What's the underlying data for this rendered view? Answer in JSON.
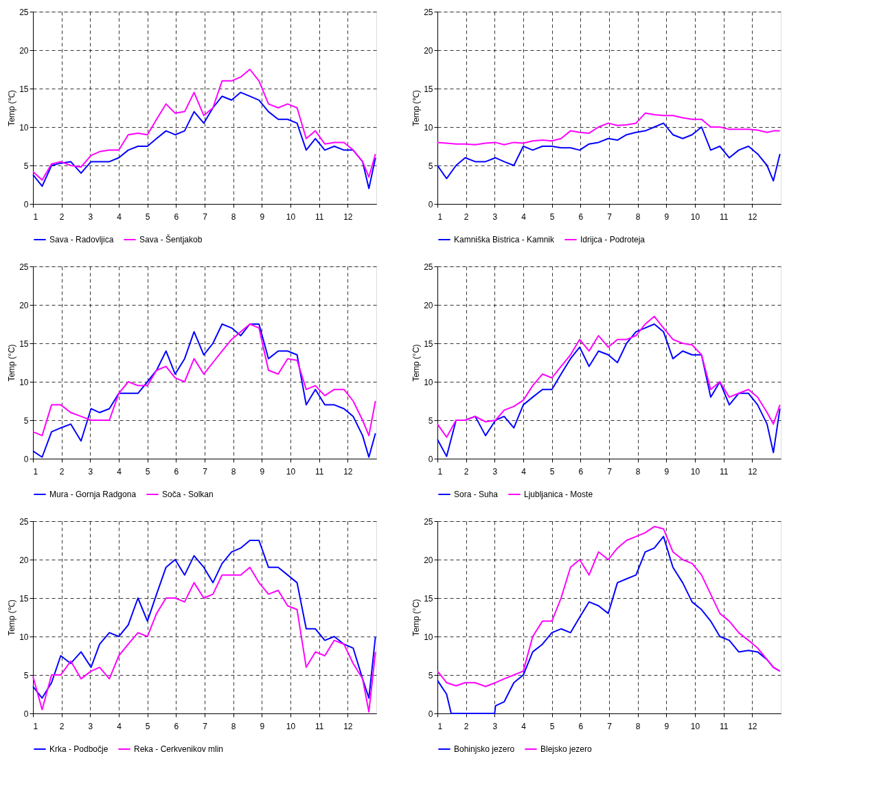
{
  "chart_data": [
    {
      "type": "line",
      "ylabel": "Temp (℃)",
      "x": [
        1.0,
        1.32,
        1.65,
        1.97,
        2.32,
        2.68,
        3.03,
        3.33,
        3.67,
        4.0,
        4.33,
        4.67,
        5.0,
        5.32,
        5.65,
        5.97,
        6.3,
        6.63,
        6.97,
        7.29,
        7.61,
        7.94,
        8.26,
        8.58,
        8.9,
        9.23,
        9.57,
        9.9,
        10.23,
        10.55,
        10.87,
        11.2,
        11.53,
        11.87,
        12.19,
        12.52,
        12.74,
        12.97
      ],
      "xlim": [
        1,
        13
      ],
      "xticks": [
        1,
        2,
        3,
        4,
        5,
        6,
        7,
        8,
        9,
        10,
        11,
        12
      ],
      "ylim": [
        0,
        25
      ],
      "yticks": [
        0,
        5,
        10,
        15,
        20,
        25
      ],
      "grid": true,
      "legend": "bottom",
      "series": [
        {
          "name": "Sava - Radovljica",
          "color": "#0000ff",
          "values": [
            3.8,
            2.3,
            5.0,
            5.3,
            5.5,
            4.0,
            5.5,
            5.5,
            5.5,
            6.0,
            7.0,
            7.5,
            7.5,
            8.5,
            9.5,
            9.0,
            9.5,
            12.0,
            10.5,
            12.5,
            14.0,
            13.5,
            14.5,
            14.0,
            13.5,
            12.0,
            11.0,
            11.0,
            10.5,
            7.0,
            8.5,
            7.0,
            7.5,
            7.0,
            7.0,
            5.5,
            2.0,
            6.0
          ]
        },
        {
          "name": "Sava - Šentjakob",
          "color": "#ff00ff",
          "values": [
            4.2,
            3.1,
            5.2,
            5.5,
            5.0,
            4.8,
            6.3,
            6.8,
            7.0,
            7.0,
            9.0,
            9.2,
            9.0,
            11.0,
            13.0,
            11.8,
            12.0,
            14.5,
            11.5,
            12.5,
            16.0,
            16.0,
            16.5,
            17.5,
            16.0,
            13.0,
            12.5,
            13.0,
            12.5,
            8.5,
            9.5,
            7.8,
            8.0,
            8.0,
            7.0,
            5.5,
            3.5,
            6.5
          ]
        }
      ]
    },
    {
      "type": "line",
      "ylabel": "Temp (℃)",
      "x": [
        1.0,
        1.32,
        1.65,
        1.97,
        2.32,
        2.68,
        3.03,
        3.33,
        3.67,
        4.0,
        4.33,
        4.67,
        5.0,
        5.32,
        5.65,
        5.97,
        6.3,
        6.63,
        6.97,
        7.29,
        7.61,
        7.94,
        8.26,
        8.58,
        8.9,
        9.23,
        9.57,
        9.9,
        10.23,
        10.55,
        10.87,
        11.2,
        11.53,
        11.87,
        12.19,
        12.52,
        12.74,
        12.97
      ],
      "xlim": [
        1,
        13
      ],
      "xticks": [
        1,
        2,
        3,
        4,
        5,
        6,
        7,
        8,
        9,
        10,
        11,
        12
      ],
      "ylim": [
        0,
        25
      ],
      "yticks": [
        0,
        5,
        10,
        15,
        20,
        25
      ],
      "grid": true,
      "legend": "bottom",
      "series": [
        {
          "name": "Kamniška Bistrica - Kamnik",
          "color": "#0000ff",
          "values": [
            5.0,
            3.3,
            5.0,
            6.0,
            5.5,
            5.5,
            6.0,
            5.5,
            5.0,
            7.5,
            7.0,
            7.5,
            7.5,
            7.3,
            7.3,
            7.0,
            7.8,
            8.0,
            8.5,
            8.3,
            9.0,
            9.3,
            9.5,
            10.0,
            10.5,
            9.0,
            8.5,
            9.0,
            10.0,
            7.0,
            7.5,
            6.0,
            7.0,
            7.5,
            6.5,
            5.0,
            3.0,
            6.5
          ]
        },
        {
          "name": "Idrijca - Podroteja",
          "color": "#ff00ff",
          "values": [
            8.0,
            7.9,
            7.8,
            7.8,
            7.7,
            7.9,
            8.0,
            7.7,
            8.0,
            7.9,
            8.2,
            8.3,
            8.2,
            8.5,
            9.5,
            9.3,
            9.2,
            10.0,
            10.5,
            10.2,
            10.3,
            10.5,
            11.8,
            11.6,
            11.5,
            11.5,
            11.2,
            11.0,
            11.0,
            10.0,
            10.0,
            9.7,
            9.7,
            9.7,
            9.6,
            9.3,
            9.5,
            9.5
          ]
        }
      ]
    },
    {
      "type": "line",
      "ylabel": "Temp (°C)",
      "x": [
        1.0,
        1.32,
        1.65,
        1.97,
        2.32,
        2.68,
        3.03,
        3.33,
        3.67,
        4.0,
        4.33,
        4.67,
        5.0,
        5.32,
        5.65,
        5.97,
        6.3,
        6.63,
        6.97,
        7.29,
        7.61,
        7.94,
        8.26,
        8.58,
        8.9,
        9.23,
        9.57,
        9.9,
        10.23,
        10.55,
        10.87,
        11.2,
        11.53,
        11.87,
        12.19,
        12.52,
        12.74,
        12.97
      ],
      "xlim": [
        1,
        13
      ],
      "xticks": [
        1,
        2,
        3,
        4,
        5,
        6,
        7,
        8,
        9,
        10,
        11,
        12
      ],
      "ylim": [
        0,
        25
      ],
      "yticks": [
        0,
        5,
        10,
        15,
        20,
        25
      ],
      "grid": true,
      "legend": "bottom",
      "series": [
        {
          "name": "Mura - Gornja Radgona",
          "color": "#0000ff",
          "values": [
            1.0,
            0.2,
            3.5,
            4.0,
            4.5,
            2.3,
            6.5,
            6.0,
            6.5,
            8.5,
            8.5,
            8.5,
            10.0,
            11.5,
            14.0,
            11.0,
            13.0,
            16.5,
            13.5,
            15.0,
            17.5,
            17.0,
            16.0,
            17.5,
            17.5,
            13.0,
            14.0,
            14.0,
            13.5,
            7.0,
            9.0,
            7.0,
            7.0,
            6.5,
            5.5,
            3.0,
            0.2,
            3.3
          ]
        },
        {
          "name": "Soča - Solkan",
          "color": "#ff00ff",
          "values": [
            3.5,
            3.0,
            7.0,
            7.0,
            6.0,
            5.5,
            5.0,
            5.0,
            5.0,
            8.5,
            10.0,
            9.5,
            9.5,
            11.5,
            12.0,
            10.5,
            10.0,
            13.0,
            11.0,
            12.5,
            14.0,
            15.5,
            16.5,
            17.5,
            17.0,
            11.5,
            11.0,
            13.0,
            12.8,
            9.0,
            9.5,
            8.2,
            9.0,
            9.0,
            7.5,
            5.0,
            3.0,
            7.5
          ]
        }
      ]
    },
    {
      "type": "line",
      "ylabel": "Temp (°C)",
      "x": [
        1.0,
        1.32,
        1.65,
        1.97,
        2.32,
        2.68,
        3.03,
        3.33,
        3.67,
        4.0,
        4.33,
        4.67,
        5.0,
        5.32,
        5.65,
        5.97,
        6.3,
        6.63,
        6.97,
        7.29,
        7.61,
        7.94,
        8.26,
        8.58,
        8.9,
        9.23,
        9.57,
        9.9,
        10.23,
        10.55,
        10.87,
        11.2,
        11.53,
        11.87,
        12.19,
        12.52,
        12.74,
        12.97
      ],
      "xlim": [
        1,
        13
      ],
      "xticks": [
        1,
        2,
        3,
        4,
        5,
        6,
        7,
        8,
        9,
        10,
        11,
        12
      ],
      "ylim": [
        0,
        25
      ],
      "yticks": [
        0,
        5,
        10,
        15,
        20,
        25
      ],
      "grid": true,
      "legend": "bottom",
      "series": [
        {
          "name": "Sora - Suha",
          "color": "#0000ff",
          "values": [
            2.5,
            0.3,
            5.0,
            5.0,
            5.5,
            3.0,
            5.0,
            5.5,
            4.0,
            7.0,
            8.0,
            9.0,
            9.0,
            11.0,
            13.0,
            14.5,
            12.0,
            14.0,
            13.5,
            12.5,
            15.0,
            16.5,
            17.0,
            17.5,
            16.5,
            13.0,
            14.0,
            13.5,
            13.5,
            8.0,
            10.0,
            7.0,
            8.5,
            8.5,
            7.0,
            4.5,
            0.8,
            6.5
          ]
        },
        {
          "name": "Ljubljanica - Moste",
          "color": "#ff00ff",
          "values": [
            4.5,
            2.8,
            5.0,
            5.0,
            5.5,
            4.8,
            5.0,
            6.3,
            6.8,
            7.6,
            9.5,
            11.0,
            10.5,
            12.0,
            13.5,
            15.5,
            14.0,
            16.0,
            14.5,
            15.5,
            15.5,
            16.0,
            17.5,
            18.5,
            17.0,
            15.5,
            15.0,
            14.8,
            13.5,
            9.0,
            10.0,
            8.0,
            8.5,
            9.0,
            8.0,
            6.0,
            4.5,
            7.0
          ]
        }
      ]
    },
    {
      "type": "line",
      "ylabel": "Temp (℃)",
      "x": [
        1.0,
        1.32,
        1.65,
        1.97,
        2.32,
        2.68,
        3.03,
        3.33,
        3.67,
        4.0,
        4.33,
        4.67,
        5.0,
        5.32,
        5.65,
        5.97,
        6.3,
        6.63,
        6.97,
        7.29,
        7.61,
        7.94,
        8.26,
        8.58,
        8.9,
        9.23,
        9.57,
        9.9,
        10.23,
        10.55,
        10.87,
        11.2,
        11.53,
        11.87,
        12.19,
        12.52,
        12.74,
        12.97
      ],
      "xlim": [
        1,
        13
      ],
      "xticks": [
        1,
        2,
        3,
        4,
        5,
        6,
        7,
        8,
        9,
        10,
        11,
        12
      ],
      "ylim": [
        0,
        25
      ],
      "yticks": [
        0,
        5,
        10,
        15,
        20,
        25
      ],
      "grid": true,
      "legend": "bottom",
      "series": [
        {
          "name": "Krka - Podbočje",
          "color": "#0000ff",
          "values": [
            3.5,
            2.0,
            4.0,
            7.5,
            6.5,
            8.0,
            6.0,
            9.0,
            10.5,
            10.0,
            11.5,
            15.0,
            12.0,
            15.5,
            19.0,
            20.0,
            18.0,
            20.5,
            19.0,
            17.0,
            19.5,
            21.0,
            21.5,
            22.5,
            22.5,
            19.0,
            19.0,
            18.0,
            17.0,
            11.0,
            11.0,
            9.5,
            10.0,
            9.0,
            8.5,
            4.5,
            2.0,
            10.0
          ]
        },
        {
          "name": "Reka - Cerkvenikov mlin",
          "color": "#ff00ff",
          "values": [
            4.8,
            0.5,
            5.0,
            5.0,
            6.8,
            4.5,
            5.5,
            6.0,
            4.5,
            7.5,
            9.0,
            10.5,
            10.0,
            13.0,
            15.0,
            15.0,
            14.5,
            17.0,
            15.0,
            15.5,
            18.0,
            18.0,
            18.0,
            19.0,
            17.0,
            15.5,
            16.0,
            14.0,
            13.5,
            6.0,
            8.0,
            7.5,
            9.5,
            9.0,
            6.5,
            4.5,
            0.2,
            8.0
          ]
        }
      ]
    },
    {
      "type": "line",
      "ylabel": "Temp (°C)",
      "x": [
        1.0,
        1.32,
        1.65,
        1.97,
        2.32,
        2.68,
        3.03,
        3.33,
        3.67,
        4.0,
        4.33,
        4.67,
        5.0,
        5.32,
        5.65,
        5.97,
        6.3,
        6.63,
        6.97,
        7.29,
        7.61,
        7.94,
        8.26,
        8.58,
        8.9,
        9.23,
        9.57,
        9.9,
        10.23,
        10.55,
        10.87,
        11.2,
        11.53,
        11.87,
        12.19,
        12.52,
        12.74,
        12.97
      ],
      "xlim": [
        1,
        13
      ],
      "xticks": [
        1,
        2,
        3,
        4,
        5,
        6,
        7,
        8,
        9,
        10,
        11,
        12
      ],
      "ylim": [
        0,
        25
      ],
      "yticks": [
        0,
        5,
        10,
        15,
        20,
        25
      ],
      "grid": true,
      "legend": "bottom",
      "series": [
        {
          "name": "Bohinjsko jezero",
          "color": "#0000ff",
          "x": [
            1.0,
            1.32,
            1.48,
            1.97,
            2.68,
            3.0,
            3.03,
            3.33,
            3.67,
            4.0,
            4.33,
            4.67,
            5.0,
            5.32,
            5.65,
            5.97,
            6.3,
            6.63,
            6.97,
            7.29,
            7.61,
            7.94,
            8.26,
            8.58,
            8.9,
            9.23,
            9.57,
            9.9,
            10.23,
            10.55,
            10.87,
            11.2,
            11.53,
            11.87,
            12.19,
            12.52,
            12.74,
            12.97
          ],
          "values": [
            4.3,
            2.5,
            0.0,
            0.0,
            0.0,
            0.0,
            1.0,
            1.5,
            4.0,
            5.0,
            8.0,
            9.0,
            10.5,
            11.0,
            10.5,
            12.5,
            14.5,
            14.0,
            13.0,
            17.0,
            17.5,
            18.0,
            21.0,
            21.5,
            23.0,
            19.0,
            17.0,
            14.5,
            13.5,
            12.0,
            10.0,
            9.5,
            8.0,
            8.2,
            8.0,
            7.0,
            6.0,
            5.5
          ]
        },
        {
          "name": "Blejsko jezero",
          "color": "#ff00ff",
          "values": [
            5.5,
            4.0,
            3.6,
            4.0,
            4.0,
            3.5,
            4.0,
            4.5,
            5.0,
            5.5,
            10.0,
            12.0,
            12.0,
            15.0,
            19.0,
            20.0,
            18.0,
            21.0,
            20.0,
            21.5,
            22.5,
            23.0,
            23.5,
            24.3,
            24.0,
            21.0,
            20.0,
            19.5,
            18.0,
            15.5,
            13.0,
            12.0,
            10.5,
            9.5,
            8.5,
            7.0,
            6.0,
            5.5
          ]
        }
      ]
    }
  ]
}
